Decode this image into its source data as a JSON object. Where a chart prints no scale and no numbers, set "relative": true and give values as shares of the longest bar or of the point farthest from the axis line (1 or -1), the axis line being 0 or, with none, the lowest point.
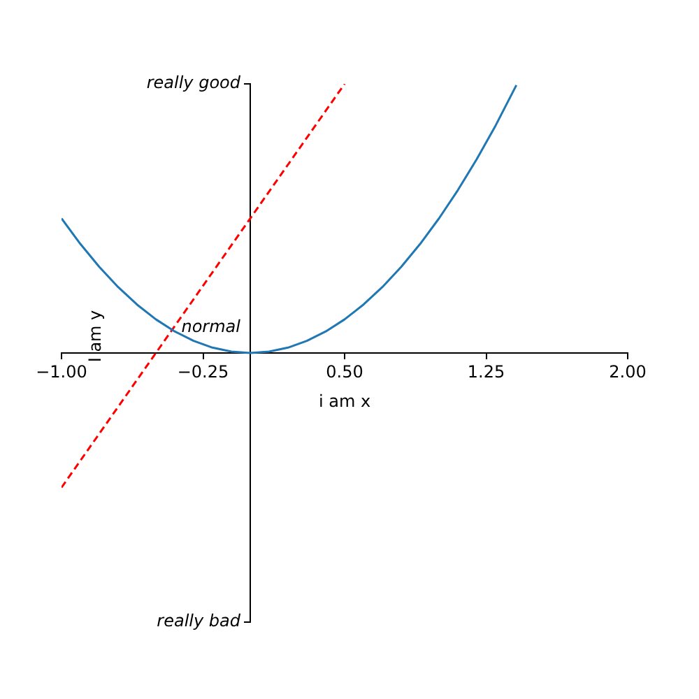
{
  "chart_data": {
    "type": "line",
    "xlabel": "i am x",
    "ylabel": "I am y",
    "xlim": [
      -1,
      2
    ],
    "relative": true,
    "xticks": [
      {
        "value": -1,
        "label": "−1.00"
      },
      {
        "value": -0.25,
        "label": "−0.25"
      },
      {
        "value": 0.5,
        "label": "0.50"
      },
      {
        "value": 1.25,
        "label": "1.25"
      },
      {
        "value": 2,
        "label": "2.00"
      }
    ],
    "annotations": [
      "really bad",
      "normal",
      "really good"
    ],
    "grid": false,
    "legend": false,
    "marker": "none",
    "series": [
      {
        "color": "#1f77b4",
        "line_style": "solid",
        "x": [
          -1,
          -0.9,
          -0.8,
          -0.7,
          -0.6,
          -0.5,
          -0.4,
          -0.3,
          -0.2,
          -0.1,
          0,
          0.1,
          0.2,
          0.3,
          0.4,
          0.5,
          0.6,
          0.7,
          0.8,
          0.9,
          1,
          1.1,
          1.2,
          1.3,
          1.41
        ],
        "values": [
          0.5,
          0.405,
          0.32,
          0.245,
          0.18,
          0.125,
          0.08,
          0.045,
          0.02,
          0.005,
          0,
          0.005,
          0.02,
          0.045,
          0.08,
          0.125,
          0.18,
          0.245,
          0.32,
          0.405,
          0.5,
          0.605,
          0.72,
          0.845,
          0.995
        ]
      },
      {
        "color": "#ff0000",
        "line_style": "dashed",
        "x": [
          -1,
          0.5
        ],
        "values": [
          -0.5,
          1
        ]
      }
    ]
  }
}
